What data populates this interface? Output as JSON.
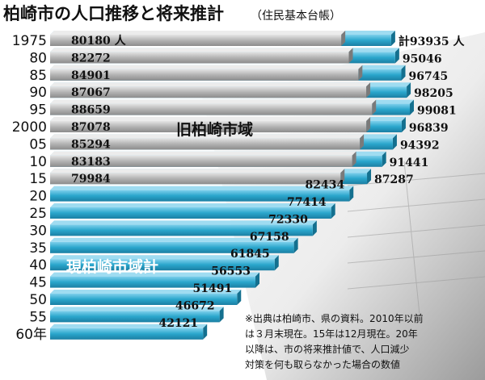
{
  "chart_data": {
    "type": "bar",
    "title": "柏崎市の人口推移と将来推計",
    "subtitle": "（住民基本台帳）",
    "categories": [
      "1975",
      "80",
      "85",
      "90",
      "95",
      "2000",
      "05",
      "10",
      "15",
      "20",
      "25",
      "30",
      "35",
      "40",
      "45",
      "50",
      "55",
      "60年"
    ],
    "series": [
      {
        "name": "旧柏崎市域",
        "values": [
          80180,
          82272,
          84901,
          87067,
          88659,
          87078,
          85294,
          83183,
          79984,
          null,
          null,
          null,
          null,
          null,
          null,
          null,
          null,
          null
        ]
      },
      {
        "name": "現柏崎市域計",
        "values": [
          93935,
          95046,
          96745,
          98205,
          99081,
          96839,
          94392,
          91441,
          87287,
          82434,
          77414,
          72330,
          67158,
          61845,
          56553,
          51491,
          46672,
          42121
        ]
      }
    ],
    "value_labels_old": [
      "80180 人",
      "82272",
      "84901",
      "87067",
      "88659",
      "87078",
      "85294",
      "83183",
      "79984"
    ],
    "value_labels_total": [
      "計93935 人",
      "95046",
      "96745",
      "98205",
      "99081",
      "96839",
      "94392",
      "91441",
      "87287",
      "82434",
      "77414",
      "72330",
      "67158",
      "61845",
      "56553",
      "51491",
      "46672",
      "42121"
    ],
    "note_lines": [
      "※出典は柏崎市、県の資料。2010年以前",
      "は３月末現在。15年は12月現在。20年",
      "以降は、市の将来推計値で、人口減少",
      "対策を何も取らなかった場合の数値"
    ],
    "colors": {
      "old_area": "#a6a6a6",
      "old_area_light": "#d6d6d6",
      "total": "#2aa6cc",
      "total_light": "#8fd3ea"
    }
  }
}
